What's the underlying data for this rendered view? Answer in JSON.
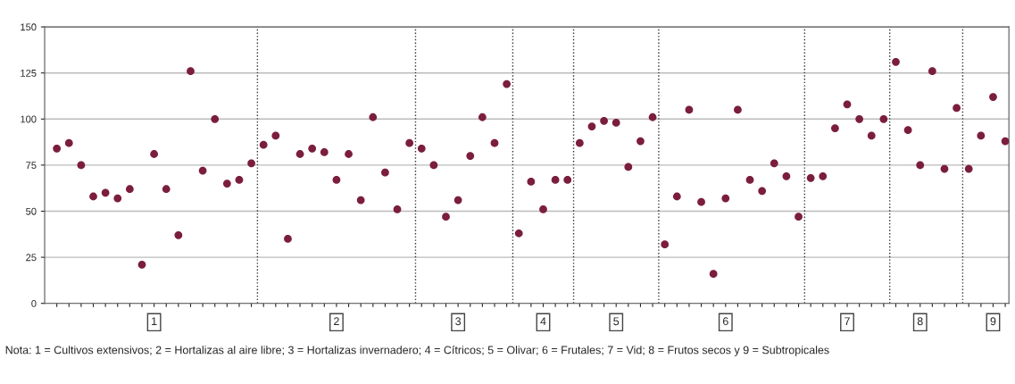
{
  "chart_data": {
    "type": "scatter",
    "categories": [
      null,
      null,
      null,
      null,
      null,
      null,
      null,
      null,
      "1",
      null,
      null,
      null,
      null,
      null,
      null,
      null,
      null,
      null,
      null,
      null,
      null,
      null,
      null,
      "2",
      null,
      null,
      null,
      null,
      null,
      null,
      null,
      null,
      null,
      "3",
      null,
      null,
      null,
      null,
      null,
      null,
      "4",
      null,
      null,
      null,
      null,
      null,
      "5",
      null,
      null,
      null,
      null,
      null,
      null,
      null,
      null,
      "6",
      null,
      null,
      null,
      null,
      null,
      null,
      null,
      null,
      null,
      "7",
      null,
      null,
      null,
      null,
      null,
      "8",
      null,
      null,
      null,
      null,
      null,
      "9",
      null
    ],
    "series": [
      {
        "color": "#7b1e3e",
        "values": [
          84,
          87,
          75,
          58,
          60,
          57,
          62,
          21,
          81,
          62,
          37,
          126,
          72,
          100,
          65,
          67,
          76,
          86,
          91,
          35,
          81,
          84,
          82,
          67,
          81,
          56,
          101,
          71,
          51,
          87,
          84,
          75,
          47,
          56,
          80,
          101,
          87,
          119,
          38,
          66,
          51,
          67,
          67,
          87,
          96,
          99,
          98,
          74,
          88,
          101,
          32,
          58,
          105,
          55,
          16,
          57,
          105,
          67,
          61,
          76,
          69,
          47,
          68,
          69,
          95,
          108,
          100,
          91,
          100,
          131,
          94,
          75,
          126,
          73,
          106,
          73,
          91,
          112,
          88
        ]
      }
    ],
    "ylim": [
      0,
      150
    ],
    "yticks": [
      0,
      25,
      50,
      75,
      100,
      125,
      150
    ],
    "grid": "y",
    "marker": "circle",
    "annotations": [
      "Nota: 1 = Cultivos extensivos; 2 = Hortalizas al aire libre; 3 = Hortalizas invernadero; 4 = Cítricos; 5 = Olivar; 6 = Frutales; 7 = Vid; 8 = Frutos secos y 9 = Subtropicales"
    ]
  }
}
